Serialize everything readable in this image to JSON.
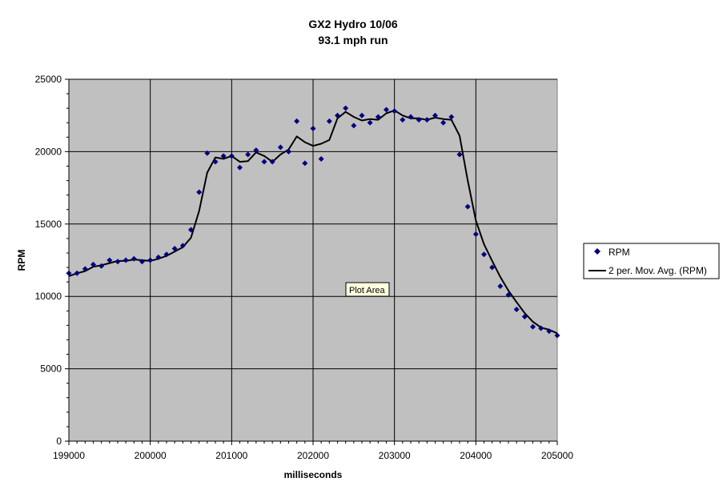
{
  "chart_data": {
    "type": "scatter",
    "title": "GX2 Hydro 10/06",
    "subtitle": "93.1 mph run",
    "xlabel": "milliseconds",
    "ylabel": "RPM",
    "xlim": [
      199000,
      205000
    ],
    "ylim": [
      0,
      25000
    ],
    "x_ticks": [
      199000,
      200000,
      201000,
      202000,
      203000,
      204000,
      205000
    ],
    "y_ticks": [
      0,
      5000,
      10000,
      15000,
      20000,
      25000
    ],
    "grid": true,
    "plot_background": "#c0c0c0",
    "legend_position": "right",
    "tooltip": "Plot Area",
    "series": [
      {
        "name": "RPM",
        "kind": "scatter",
        "color": "#000080",
        "marker": "diamond",
        "x": [
          199000,
          199100,
          199200,
          199300,
          199400,
          199500,
          199600,
          199700,
          199800,
          199900,
          200000,
          200100,
          200200,
          200300,
          200400,
          200500,
          200600,
          200700,
          200800,
          200900,
          201000,
          201100,
          201200,
          201300,
          201400,
          201500,
          201600,
          201700,
          201800,
          201900,
          202000,
          202100,
          202200,
          202300,
          202400,
          202500,
          202600,
          202700,
          202800,
          202900,
          203000,
          203100,
          203200,
          203300,
          203400,
          203500,
          203600,
          203700,
          203800,
          203900,
          204000,
          204100,
          204200,
          204300,
          204400,
          204500,
          204600,
          204700,
          204800,
          204900,
          205000
        ],
        "y": [
          11600,
          11600,
          11900,
          12200,
          12100,
          12500,
          12400,
          12500,
          12600,
          12400,
          12500,
          12700,
          12900,
          13300,
          13500,
          14600,
          17200,
          19900,
          19300,
          19700,
          19700,
          18900,
          19800,
          20100,
          19300,
          19300,
          20300,
          20000,
          22100,
          19200,
          21600,
          19500,
          22100,
          22500,
          23000,
          21800,
          22500,
          22000,
          22400,
          22900,
          22800,
          22200,
          22400,
          22200,
          22200,
          22500,
          22000,
          22400,
          19800,
          16200,
          14300,
          12900,
          12000,
          10700,
          10100,
          9100,
          8600,
          7900,
          7800,
          7600,
          7300
        ]
      },
      {
        "name": "2 per. Mov. Avg. (RPM)",
        "kind": "line",
        "color": "#000000",
        "x": [
          199000,
          199100,
          199200,
          199300,
          199400,
          199500,
          199600,
          199700,
          199800,
          199900,
          200000,
          200100,
          200200,
          200300,
          200400,
          200500,
          200600,
          200700,
          200800,
          200900,
          201000,
          201100,
          201200,
          201300,
          201400,
          201500,
          201600,
          201700,
          201800,
          201900,
          202000,
          202100,
          202200,
          202300,
          202400,
          202500,
          202600,
          202700,
          202800,
          202900,
          203000,
          203100,
          203200,
          203300,
          203400,
          203500,
          203600,
          203700,
          203800,
          203900,
          204000,
          204100,
          204200,
          204300,
          204400,
          204500,
          204600,
          204700,
          204800,
          204900,
          205000
        ],
        "y": [
          11400,
          11600,
          11750,
          12050,
          12150,
          12300,
          12450,
          12450,
          12550,
          12500,
          12450,
          12600,
          12800,
          13100,
          13400,
          14050,
          15900,
          18550,
          19600,
          19500,
          19700,
          19300,
          19350,
          19950,
          19700,
          19300,
          19800,
          20150,
          21050,
          20650,
          20400,
          20550,
          20800,
          22300,
          22750,
          22400,
          22150,
          22250,
          22200,
          22650,
          22850,
          22500,
          22300,
          22300,
          22200,
          22350,
          22250,
          22200,
          21100,
          18000,
          15250,
          13600,
          12450,
          11350,
          10400,
          9600,
          8850,
          8250,
          7850,
          7700,
          7450
        ]
      }
    ]
  }
}
